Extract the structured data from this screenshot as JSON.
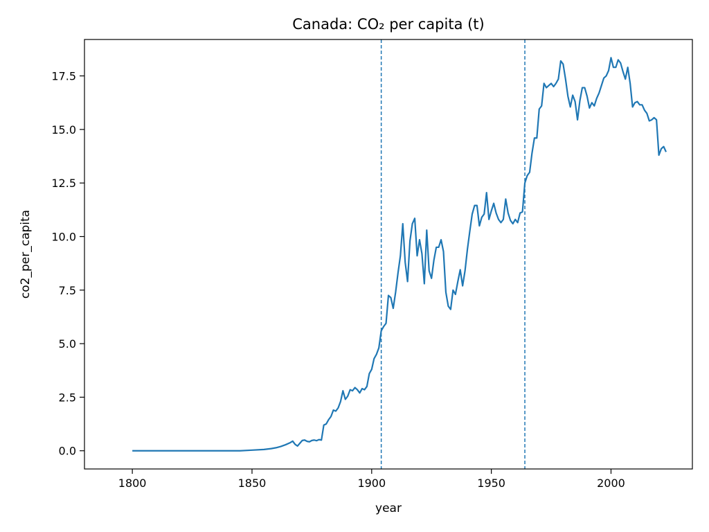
{
  "chart_data": {
    "type": "line",
    "title": "Canada: CO₂ per capita (t)",
    "xlabel": "year",
    "ylabel": "co2_per_capita",
    "xlim": [
      1780,
      2034
    ],
    "ylim": [
      -0.85,
      19.2
    ],
    "xticks": [
      1800,
      1850,
      1900,
      1950,
      2000
    ],
    "yticks": [
      0.0,
      2.5,
      5.0,
      7.5,
      10.0,
      12.5,
      15.0,
      17.5
    ],
    "ytick_labels": [
      "0.0",
      "2.5",
      "5.0",
      "7.5",
      "10.0",
      "12.5",
      "15.0",
      "17.5"
    ],
    "grid": false,
    "line_color": "#1f77b4",
    "reference_lines": [
      {
        "axis": "x",
        "value": 1904,
        "style": "dashed",
        "color": "#1f77b4"
      },
      {
        "axis": "x",
        "value": 1964,
        "style": "dashed",
        "color": "#1f77b4"
      }
    ],
    "series": [
      {
        "x": [
          1800,
          1810,
          1820,
          1830,
          1840,
          1845,
          1850,
          1855,
          1858,
          1860,
          1862,
          1864,
          1866,
          1867,
          1868,
          1869,
          1870,
          1871,
          1872,
          1873,
          1874,
          1875,
          1876,
          1877,
          1878,
          1879,
          1880,
          1881,
          1882,
          1883,
          1884,
          1885,
          1886,
          1887,
          1888,
          1889,
          1890,
          1891,
          1892,
          1893,
          1894,
          1895,
          1896,
          1897,
          1898,
          1899,
          1900,
          1901,
          1902,
          1903,
          1904,
          1905,
          1906,
          1907,
          1908,
          1909,
          1910,
          1911,
          1912,
          1913,
          1914,
          1915,
          1916,
          1917,
          1918,
          1919,
          1920,
          1921,
          1922,
          1923,
          1924,
          1925,
          1926,
          1927,
          1928,
          1929,
          1930,
          1931,
          1932,
          1933,
          1934,
          1935,
          1936,
          1937,
          1938,
          1939,
          1940,
          1941,
          1942,
          1943,
          1944,
          1945,
          1946,
          1947,
          1948,
          1949,
          1950,
          1951,
          1952,
          1953,
          1954,
          1955,
          1956,
          1957,
          1958,
          1959,
          1960,
          1961,
          1962,
          1963,
          1964,
          1965,
          1966,
          1967,
          1968,
          1969,
          1970,
          1971,
          1972,
          1973,
          1974,
          1975,
          1976,
          1977,
          1978,
          1979,
          1980,
          1981,
          1982,
          1983,
          1984,
          1985,
          1986,
          1987,
          1988,
          1989,
          1990,
          1991,
          1992,
          1993,
          1994,
          1995,
          1996,
          1997,
          1998,
          1999,
          2000,
          2001,
          2002,
          2003,
          2004,
          2005,
          2006,
          2007,
          2008,
          2009,
          2010,
          2011,
          2012,
          2013,
          2014,
          2015,
          2016,
          2017,
          2018,
          2019,
          2020,
          2021,
          2022,
          2023
        ],
        "y": [
          0.0,
          0.0,
          0.0,
          0.0,
          0.0,
          0.0,
          0.03,
          0.06,
          0.1,
          0.14,
          0.2,
          0.28,
          0.38,
          0.45,
          0.3,
          0.22,
          0.35,
          0.48,
          0.5,
          0.44,
          0.42,
          0.48,
          0.5,
          0.47,
          0.52,
          0.5,
          1.2,
          1.25,
          1.45,
          1.6,
          1.9,
          1.85,
          2.0,
          2.3,
          2.8,
          2.4,
          2.55,
          2.85,
          2.8,
          2.95,
          2.85,
          2.7,
          2.9,
          2.85,
          3.0,
          3.6,
          3.8,
          4.3,
          4.5,
          4.8,
          5.6,
          5.8,
          5.95,
          7.25,
          7.15,
          6.65,
          7.4,
          8.3,
          9.1,
          10.6,
          8.8,
          7.9,
          9.8,
          10.6,
          10.85,
          9.1,
          9.85,
          9.2,
          7.8,
          10.3,
          8.4,
          8.05,
          8.9,
          9.5,
          9.5,
          9.85,
          9.3,
          7.4,
          6.75,
          6.6,
          7.5,
          7.3,
          7.9,
          8.45,
          7.7,
          8.4,
          9.4,
          10.25,
          11.05,
          11.45,
          11.45,
          10.5,
          10.9,
          11.05,
          12.05,
          10.8,
          11.2,
          11.55,
          11.1,
          10.8,
          10.65,
          10.8,
          11.75,
          11.1,
          10.75,
          10.6,
          10.8,
          10.65,
          11.1,
          11.15,
          12.5,
          12.85,
          13.0,
          13.9,
          14.6,
          14.6,
          15.95,
          16.1,
          17.15,
          16.95,
          17.05,
          17.15,
          17.0,
          17.15,
          17.35,
          18.2,
          18.05,
          17.35,
          16.55,
          16.05,
          16.6,
          16.3,
          15.45,
          16.35,
          16.95,
          16.95,
          16.55,
          16.0,
          16.25,
          16.1,
          16.45,
          16.7,
          17.05,
          17.4,
          17.5,
          17.75,
          18.35,
          17.9,
          17.9,
          18.25,
          18.1,
          17.7,
          17.35,
          17.9,
          17.15,
          16.05,
          16.25,
          16.3,
          16.15,
          16.15,
          15.9,
          15.75,
          15.4,
          15.45,
          15.55,
          15.45,
          13.8,
          14.1,
          14.2,
          13.95
        ]
      }
    ]
  }
}
